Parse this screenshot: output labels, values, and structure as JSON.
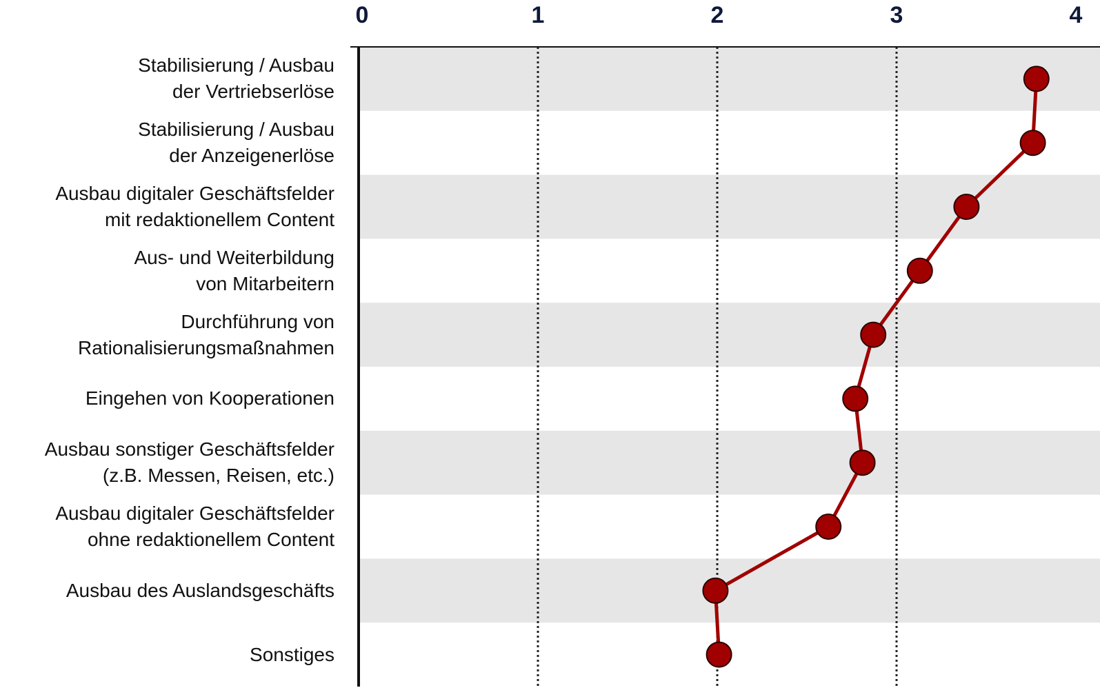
{
  "chart_data": {
    "type": "dotline",
    "categories": [
      "Stabilisierung / Ausbau\nder Vertriebserlöse",
      "Stabilisierung / Ausbau\nder Anzeigenerlöse",
      "Ausbau digitaler Geschäftsfelder\nmit redaktionellem Content",
      "Aus- und Weiterbildung\nvon Mitarbeitern",
      "Durchführung von\nRationalisierungsmaßnahmen",
      "Eingehen von Kooperationen",
      "Ausbau sonstiger Geschäftsfelder\n(z.B. Messen, Reisen, etc.)",
      "Ausbau digitaler Geschäftsfelder\nohne redaktionellem Content",
      "Ausbau des Auslandsgeschäfts",
      "Sonstiges"
    ],
    "values": [
      3.78,
      3.76,
      3.39,
      3.13,
      2.87,
      2.77,
      2.81,
      2.62,
      1.99,
      2.01
    ],
    "color": "#a00000",
    "xlim": [
      0,
      4
    ],
    "xticks": [
      0,
      1,
      2,
      3,
      4
    ],
    "grid": true
  }
}
